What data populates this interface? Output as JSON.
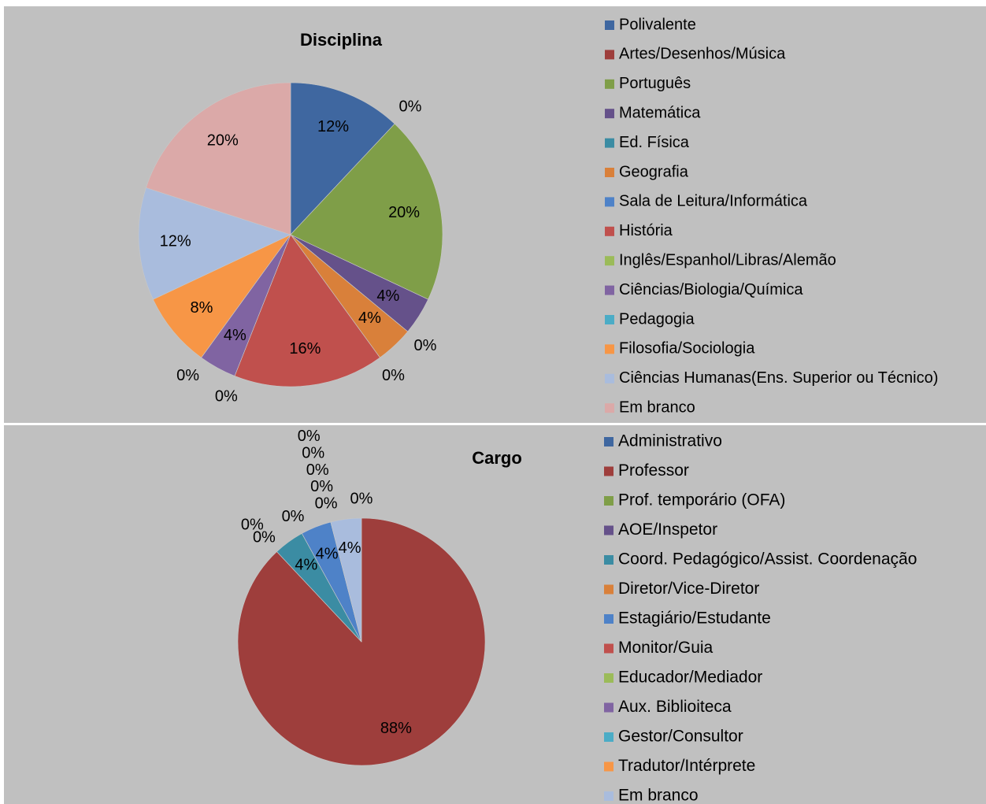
{
  "chart_data": [
    {
      "type": "pie",
      "title": "Disciplina",
      "categories": [
        "Polivalente",
        "Artes/Desenhos/Música",
        "Português",
        "Matemática",
        "Ed. Física",
        "Geografia",
        "Sala de Leitura/Informática",
        "História",
        "Inglês/Espanhol/Libras/Alemão",
        "Ciências/Biologia/Química",
        "Pedagogia",
        "Filosofia/Sociologia",
        "Ciências Humanas(Ens. Superior ou Técnico)",
        "Em branco"
      ],
      "values": [
        12,
        0,
        20,
        4,
        0,
        4,
        0,
        16,
        0,
        4,
        0,
        8,
        12,
        20
      ],
      "value_labels": [
        "12%",
        "0%",
        "20%",
        "4%",
        "0%",
        "4%",
        "0%",
        "16%",
        "0%",
        "4%",
        "0%",
        "8%",
        "12%",
        "20%"
      ],
      "colors": [
        "#3f67a0",
        "#9e3e3c",
        "#7f9e48",
        "#65518a",
        "#3b8ca3",
        "#d9803a",
        "#4e82c8",
        "#c0504d",
        "#9bbb59",
        "#8064a2",
        "#4bacc6",
        "#f79646",
        "#a9bcdd",
        "#dba9a8"
      ],
      "legend": "right"
    },
    {
      "type": "pie",
      "title": "Cargo",
      "categories": [
        "Administrativo",
        "Professor",
        "Prof. temporário (OFA)",
        "AOE/Inspetor",
        "Coord. Pedagógico/Assist. Coordenação",
        "Diretor/Vice-Diretor",
        "Estagiário/Estudante",
        "Monitor/Guia",
        "Educador/Mediador",
        "Aux. Biblioiteca",
        "Gestor/Consultor",
        "Tradutor/Intérprete",
        "Em branco"
      ],
      "values": [
        0,
        88,
        0,
        0,
        4,
        0,
        4,
        0,
        0,
        0,
        0,
        0,
        4
      ],
      "value_labels": [
        "0%",
        "88%",
        "0%",
        "0%",
        "4%",
        "0%",
        "4%",
        "0%",
        "0%",
        "0%",
        "0%",
        "0%",
        "4%"
      ],
      "colors": [
        "#3f67a0",
        "#9e3e3c",
        "#7f9e48",
        "#65518a",
        "#3b8ca3",
        "#d9803a",
        "#4e82c8",
        "#c0504d",
        "#9bbb59",
        "#8064a2",
        "#4bacc6",
        "#f79646",
        "#a9bcdd"
      ],
      "legend": "right"
    }
  ]
}
